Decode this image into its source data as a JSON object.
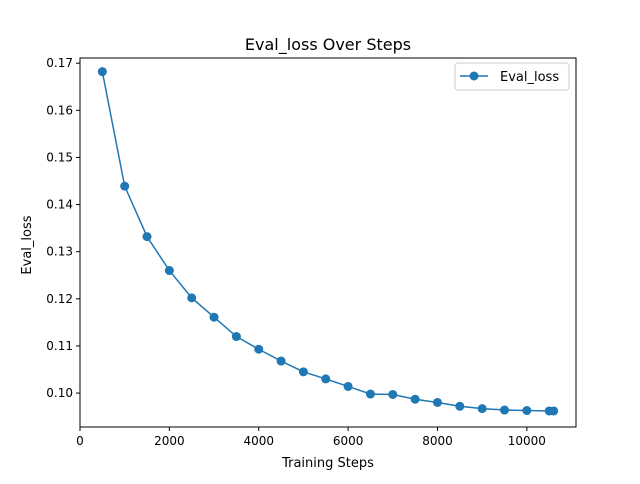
{
  "chart_data": {
    "type": "line",
    "title": "Eval_loss Over Steps",
    "xlabel": "Training Steps",
    "ylabel": "Eval_loss",
    "xlim": [
      0,
      11100
    ],
    "ylim": [
      0.0928,
      0.1711
    ],
    "xticks": [
      0,
      2000,
      4000,
      6000,
      8000,
      10000
    ],
    "yticks": [
      0.1,
      0.11,
      0.12,
      0.13,
      0.14,
      0.15,
      0.16,
      0.17
    ],
    "xtick_labels": [
      "0",
      "2000",
      "4000",
      "6000",
      "8000",
      "10000"
    ],
    "ytick_labels": [
      "0.10",
      "0.11",
      "0.12",
      "0.13",
      "0.14",
      "0.15",
      "0.16",
      "0.17"
    ],
    "grid": false,
    "legend_position": "upper right",
    "series": [
      {
        "name": "Eval_loss",
        "color": "#1f77b4",
        "marker": "circle",
        "x": [
          500,
          1000,
          1500,
          2000,
          2500,
          3000,
          3500,
          4000,
          4500,
          5000,
          5500,
          6000,
          6500,
          7000,
          7500,
          8000,
          8500,
          9000,
          9500,
          10000,
          10500,
          10600
        ],
        "y": [
          0.1682,
          0.1439,
          0.1332,
          0.126,
          0.1202,
          0.1161,
          0.112,
          0.1093,
          0.1068,
          0.1045,
          0.103,
          0.1014,
          0.0998,
          0.0997,
          0.0987,
          0.098,
          0.0972,
          0.0967,
          0.0964,
          0.0963,
          0.0962,
          0.0962
        ]
      }
    ]
  }
}
